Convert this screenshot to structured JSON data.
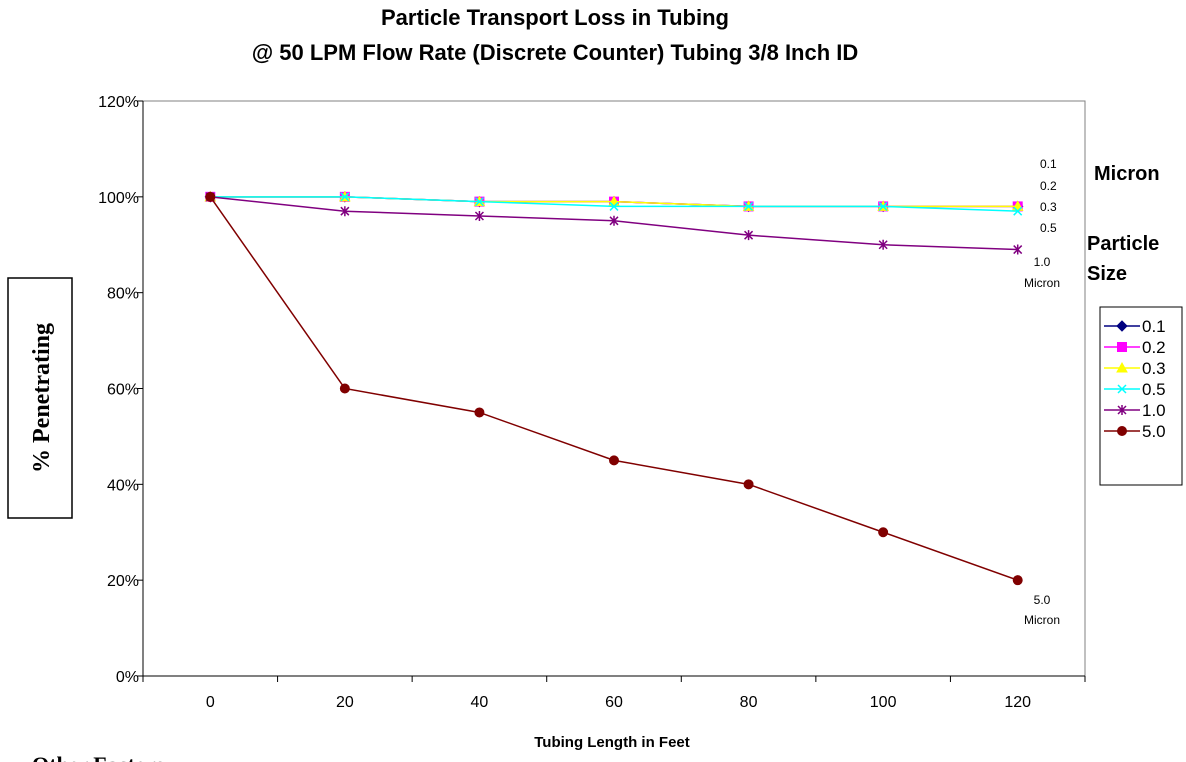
{
  "chart_data": {
    "type": "line",
    "title": "Particle Transport Loss in Tubing",
    "subtitle": "@ 50 LPM Flow Rate (Discrete Counter) Tubing 3/8 Inch ID",
    "xlabel": "Tubing Length in Feet",
    "ylabel": "% Penetrating",
    "x": [
      0,
      20,
      40,
      60,
      80,
      100,
      120
    ],
    "x_tick_labels": [
      "0",
      "20",
      "40",
      "60",
      "80",
      "100",
      "120"
    ],
    "ylim": [
      0,
      120
    ],
    "y_tick_labels": [
      "0%",
      "20%",
      "40%",
      "60%",
      "80%",
      "100%",
      "120%"
    ],
    "grid": false,
    "legend_position": "right",
    "series": [
      {
        "name": "0.1",
        "color": "#000080",
        "marker": "diamond",
        "values": [
          100,
          100,
          99,
          99,
          98,
          98,
          98
        ]
      },
      {
        "name": "0.2",
        "color": "#ff00ff",
        "marker": "square",
        "values": [
          100,
          100,
          99,
          99,
          98,
          98,
          98
        ]
      },
      {
        "name": "0.3",
        "color": "#ffff00",
        "marker": "triangle",
        "values": [
          100,
          100,
          99,
          99,
          98,
          98,
          98
        ]
      },
      {
        "name": "0.5",
        "color": "#00ffff",
        "marker": "x",
        "values": [
          100,
          100,
          99,
          98,
          98,
          98,
          97
        ]
      },
      {
        "name": "1.0",
        "color": "#800080",
        "marker": "star",
        "values": [
          100,
          97,
          96,
          95,
          92,
          90,
          89
        ]
      },
      {
        "name": "5.0",
        "color": "#800000",
        "marker": "circle",
        "values": [
          100,
          60,
          55,
          45,
          40,
          30,
          20
        ]
      }
    ],
    "annotations": {
      "upper_group": [
        "0.1",
        "0.2",
        "0.3",
        "0.5"
      ],
      "one_micron": [
        "1.0",
        "Micron"
      ],
      "five_micron": [
        "5.0",
        "Micron"
      ]
    },
    "side_labels": {
      "micron": "Micron",
      "particle_size": [
        "Particle",
        "Size"
      ]
    }
  },
  "footer_text": "Other Factors"
}
